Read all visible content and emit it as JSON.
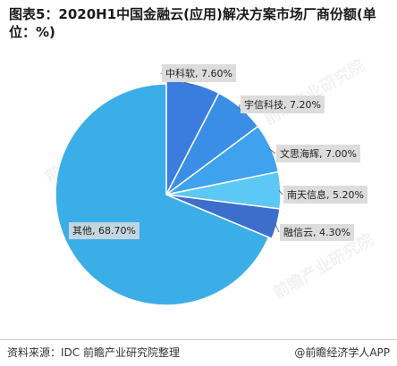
{
  "title": "图表5：2020H1中国金融云(应用)解决方案市场厂商份额(单位：%)",
  "footer": {
    "source": "资料来源：IDC 前瞻产业研究院整理",
    "credit": "@前瞻经济学人APP"
  },
  "watermark": "前瞻产业研究院",
  "colors": {
    "main_slice": "#3BAEE8",
    "slices": [
      "#3A7DDF",
      "#3A8EE6",
      "#3EA2EE",
      "#5CC8F6",
      "#3C6FCC"
    ],
    "label_bg": "#DCDCDC"
  },
  "chart_data": {
    "type": "pie",
    "categories": [
      "中科软",
      "宇信科技",
      "文思海辉",
      "南天信息",
      "融信云",
      "其他"
    ],
    "values": [
      7.6,
      7.2,
      7.0,
      5.2,
      4.3,
      68.7
    ],
    "labels": [
      "中科软, 7.60%",
      "宇信科技, 7.20%",
      "文思海辉, 7.00%",
      "南天信息, 5.20%",
      "融信云, 4.30%",
      "其他, 68.70%"
    ]
  }
}
